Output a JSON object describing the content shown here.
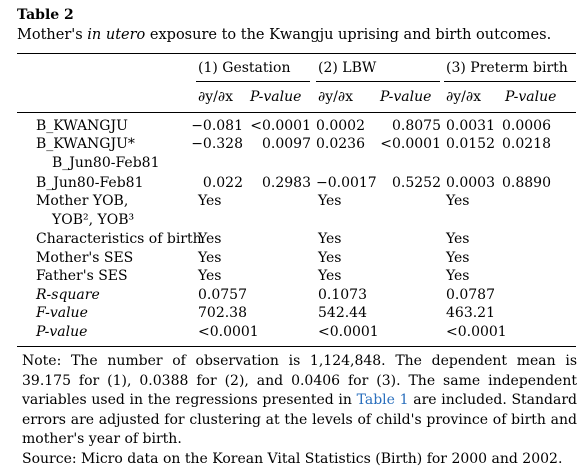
{
  "table": {
    "label": "Table 2",
    "caption_pre": "Mother's ",
    "caption_italic": "in utero",
    "caption_post": " exposure to the Kwangju uprising and birth outcomes.",
    "groups": [
      "(1) Gestation",
      "(2) LBW",
      "(3) Preterm birth"
    ],
    "subheaders": [
      "∂y/∂x",
      "P-value",
      "∂y/∂x",
      "P-value",
      "∂y/∂x",
      "P-value"
    ],
    "rows": [
      {
        "label": "B_KWANGJU",
        "label2": "",
        "cells": [
          "−0.081",
          "<0.0001",
          "0.0002",
          "0.8075",
          "0.0031",
          "0.0006"
        ]
      },
      {
        "label": "B_KWANGJU*",
        "label2": "B_Jun80-Feb81",
        "cells": [
          "−0.328",
          "0.0097",
          "0.0236",
          "<0.0001",
          "0.0152",
          "0.0218"
        ]
      },
      {
        "label": "B_Jun80-Feb81",
        "label2": "",
        "cells": [
          "0.022",
          "0.2983",
          "−0.0017",
          "0.5252",
          "0.0003",
          "0.8890"
        ]
      },
      {
        "label": "Mother YOB,",
        "label2": "YOB², YOB³",
        "cells": [
          "Yes",
          "",
          "Yes",
          "",
          "Yes",
          ""
        ]
      },
      {
        "label": "Characteristics of birth",
        "label2": "",
        "cells": [
          "Yes",
          "",
          "Yes",
          "",
          "Yes",
          ""
        ]
      },
      {
        "label": "Mother's SES",
        "label2": "",
        "cells": [
          "Yes",
          "",
          "Yes",
          "",
          "Yes",
          ""
        ]
      },
      {
        "label": "Father's SES",
        "label2": "",
        "cells": [
          "Yes",
          "",
          "Yes",
          "",
          "Yes",
          ""
        ]
      },
      {
        "label": "R-square",
        "label2": "",
        "cells": [
          "0.0757",
          "",
          "0.1073",
          "",
          "0.0787",
          ""
        ]
      },
      {
        "label": "F-value",
        "label2": "",
        "cells": [
          "702.38",
          "",
          "542.44",
          "",
          "463.21",
          ""
        ]
      },
      {
        "label": "P-value",
        "label2": "",
        "cells": [
          "<0.0001",
          "",
          "<0.0001",
          "",
          "<0.0001",
          ""
        ]
      }
    ],
    "note_part1": "Note: The number of observation is 1,124,848. The dependent mean is 39.175 for (1), 0.0388 for (2), and 0.0406 for (3). The same independent variables used in the regressions presented in ",
    "note_link": "Table 1",
    "note_part2": " are included. Standard errors are adjusted for clustering at the levels of child's province of birth and mother's year of birth.",
    "source": "Source: Micro data on the Korean Vital Statistics (Birth) for 2000 and 2002."
  }
}
